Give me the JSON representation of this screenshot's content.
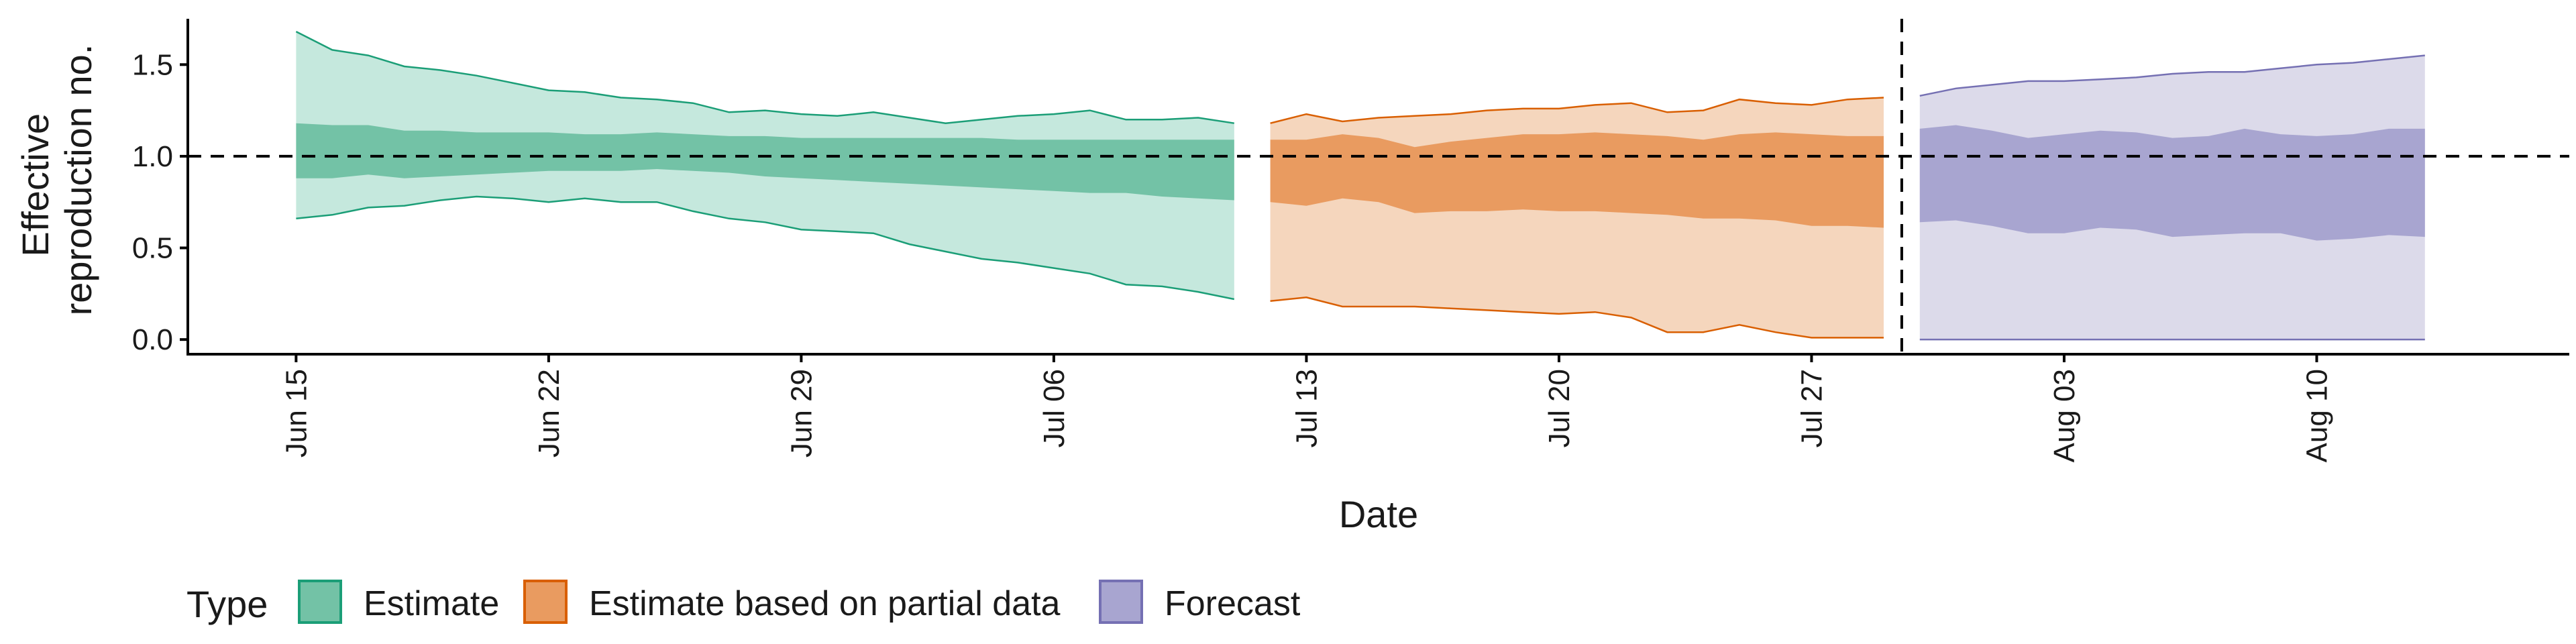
{
  "chart_data": {
    "type": "area",
    "xlabel": "Date",
    "ylabel_lines": [
      "Effective",
      "reproduction no."
    ],
    "ylim": [
      -0.08,
      1.75
    ],
    "y_ticks": [
      0.0,
      0.5,
      1.0,
      1.5
    ],
    "y_tick_labels": [
      "0.0",
      "0.5",
      "1.0",
      "1.5"
    ],
    "x_range": [
      "2020-06-12",
      "2020-08-17"
    ],
    "x_ticks": [
      "2020-06-15",
      "2020-06-22",
      "2020-06-29",
      "2020-07-06",
      "2020-07-13",
      "2020-07-20",
      "2020-07-27",
      "2020-08-03",
      "2020-08-10"
    ],
    "x_tick_labels": [
      "Jun 15",
      "Jun 22",
      "Jun 29",
      "Jul 06",
      "Jul 13",
      "Jul 20",
      "Jul 27",
      "Aug 03",
      "Aug 10"
    ],
    "reference_line": 1.0,
    "vertical_line": "2020-07-29",
    "legend": {
      "title": "Type",
      "position": "bottom",
      "entries": [
        "Estimate",
        "Estimate based on partial data",
        "Forecast"
      ]
    },
    "series": [
      {
        "name": "Estimate",
        "fill_light": "#c5e8dd",
        "fill_dark": "#73c2a6",
        "line": "#1b9e77",
        "x": [
          "2020-06-15",
          "2020-06-16",
          "2020-06-17",
          "2020-06-18",
          "2020-06-19",
          "2020-06-20",
          "2020-06-21",
          "2020-06-22",
          "2020-06-23",
          "2020-06-24",
          "2020-06-25",
          "2020-06-26",
          "2020-06-27",
          "2020-06-28",
          "2020-06-29",
          "2020-06-30",
          "2020-07-01",
          "2020-07-02",
          "2020-07-03",
          "2020-07-04",
          "2020-07-05",
          "2020-07-06",
          "2020-07-07",
          "2020-07-08",
          "2020-07-09",
          "2020-07-10",
          "2020-07-11"
        ],
        "lower_90": [
          0.66,
          0.68,
          0.72,
          0.73,
          0.76,
          0.78,
          0.77,
          0.75,
          0.77,
          0.75,
          0.75,
          0.7,
          0.66,
          0.64,
          0.6,
          0.59,
          0.58,
          0.52,
          0.48,
          0.44,
          0.42,
          0.39,
          0.36,
          0.3,
          0.29,
          0.26,
          0.22
        ],
        "lower_50": [
          0.88,
          0.88,
          0.9,
          0.88,
          0.89,
          0.9,
          0.91,
          0.92,
          0.92,
          0.92,
          0.93,
          0.92,
          0.91,
          0.89,
          0.88,
          0.87,
          0.86,
          0.85,
          0.84,
          0.83,
          0.82,
          0.81,
          0.8,
          0.8,
          0.78,
          0.77,
          0.76
        ],
        "upper_50": [
          1.18,
          1.17,
          1.17,
          1.14,
          1.14,
          1.13,
          1.13,
          1.13,
          1.12,
          1.12,
          1.13,
          1.12,
          1.11,
          1.11,
          1.1,
          1.1,
          1.1,
          1.1,
          1.1,
          1.1,
          1.09,
          1.09,
          1.09,
          1.09,
          1.09,
          1.09,
          1.09
        ],
        "upper_90": [
          1.68,
          1.58,
          1.55,
          1.49,
          1.47,
          1.44,
          1.4,
          1.36,
          1.35,
          1.32,
          1.31,
          1.29,
          1.24,
          1.25,
          1.23,
          1.22,
          1.24,
          1.21,
          1.18,
          1.2,
          1.22,
          1.23,
          1.25,
          1.2,
          1.2,
          1.21,
          1.18
        ]
      },
      {
        "name": "Estimate based on partial data",
        "fill_light": "#f5d6bd",
        "fill_dark": "#e99b60",
        "line": "#d95f02",
        "x": [
          "2020-07-12",
          "2020-07-13",
          "2020-07-14",
          "2020-07-15",
          "2020-07-16",
          "2020-07-17",
          "2020-07-18",
          "2020-07-19",
          "2020-07-20",
          "2020-07-21",
          "2020-07-22",
          "2020-07-23",
          "2020-07-24",
          "2020-07-25",
          "2020-07-26",
          "2020-07-27",
          "2020-07-28",
          "2020-07-29"
        ],
        "lower_90": [
          0.21,
          0.23,
          0.18,
          0.18,
          0.18,
          0.17,
          0.16,
          0.15,
          0.14,
          0.15,
          0.12,
          0.04,
          0.04,
          0.08,
          0.04,
          0.01,
          0.01,
          0.01
        ],
        "lower_50": [
          0.75,
          0.73,
          0.77,
          0.75,
          0.69,
          0.7,
          0.7,
          0.71,
          0.7,
          0.7,
          0.69,
          0.68,
          0.66,
          0.66,
          0.65,
          0.62,
          0.62,
          0.61
        ],
        "upper_50": [
          1.09,
          1.09,
          1.12,
          1.1,
          1.05,
          1.08,
          1.1,
          1.12,
          1.12,
          1.13,
          1.12,
          1.11,
          1.09,
          1.12,
          1.13,
          1.12,
          1.11,
          1.11
        ],
        "upper_90": [
          1.18,
          1.23,
          1.19,
          1.21,
          1.22,
          1.23,
          1.25,
          1.26,
          1.26,
          1.28,
          1.29,
          1.24,
          1.25,
          1.31,
          1.29,
          1.28,
          1.31,
          1.32
        ]
      },
      {
        "name": "Forecast",
        "fill_light": "#dcdaea",
        "fill_dark": "#a8a5d0",
        "line": "#7570b3",
        "x": [
          "2020-07-30",
          "2020-07-31",
          "2020-08-01",
          "2020-08-02",
          "2020-08-03",
          "2020-08-04",
          "2020-08-05",
          "2020-08-06",
          "2020-08-07",
          "2020-08-08",
          "2020-08-09",
          "2020-08-10",
          "2020-08-11",
          "2020-08-12",
          "2020-08-13"
        ],
        "lower_90": [
          0.0,
          0.0,
          0.0,
          0.0,
          0.0,
          0.0,
          0.0,
          0.0,
          0.0,
          0.0,
          0.0,
          0.0,
          0.0,
          0.0,
          0.0
        ],
        "lower_50": [
          0.64,
          0.65,
          0.62,
          0.58,
          0.58,
          0.61,
          0.6,
          0.56,
          0.57,
          0.58,
          0.58,
          0.54,
          0.55,
          0.57,
          0.56
        ],
        "upper_50": [
          1.15,
          1.17,
          1.14,
          1.1,
          1.12,
          1.14,
          1.13,
          1.1,
          1.11,
          1.15,
          1.12,
          1.11,
          1.12,
          1.15,
          1.15
        ],
        "upper_90": [
          1.33,
          1.37,
          1.39,
          1.41,
          1.41,
          1.42,
          1.43,
          1.45,
          1.46,
          1.46,
          1.48,
          1.5,
          1.51,
          1.53,
          1.55
        ]
      }
    ]
  }
}
